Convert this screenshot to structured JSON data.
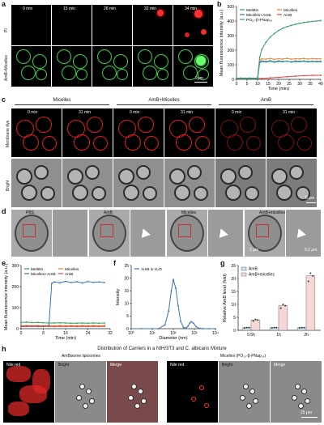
{
  "panels": {
    "a": {
      "letter": "a",
      "times": [
        "0 min",
        "15 min",
        "28 min",
        "32 min",
        "34 min"
      ],
      "row_labels": [
        "PI",
        "AmB+Micelles"
      ],
      "scale_bar": "2μm"
    },
    "b": {
      "letter": "b",
      "ylabel": "Mean fluorescence intensity (a.u.)",
      "xlabel": "Time (min)",
      "legend": [
        "Melittin",
        "Micelles",
        "Micelles+AmB",
        "AmB",
        "PO₁₀-β-PNap₁₄"
      ]
    },
    "c": {
      "letter": "c",
      "groups": [
        "Micelles",
        "AmB+Micelles",
        "AmB"
      ],
      "times": [
        "0 min",
        "31 min"
      ],
      "row_labels": [
        "Membrane dye",
        "Bright"
      ],
      "scale_bar": "5 μm"
    },
    "d": {
      "letter": "d",
      "labels": [
        "PBS",
        "AmB",
        "Micelles",
        "AmB+micelles"
      ],
      "scale_bars": [
        "1 μm",
        "0.2 μm"
      ]
    },
    "e": {
      "letter": "e",
      "ylabel": "Mean fluorescence intensity (a.u.)",
      "xlabel": "Time (min)",
      "legend": [
        "Melittin",
        "Micelles",
        "Micelles+AmB",
        "AmB"
      ]
    },
    "f": {
      "letter": "f",
      "ylabel": "Intensity",
      "xlabel": "Diameter (nm)",
      "legend": [
        "AmB in H₂O"
      ]
    },
    "g": {
      "letter": "g",
      "ylabel": "Relative AmB level (fold)",
      "legend": [
        "AmB",
        "AmB+micelles"
      ]
    },
    "h": {
      "letter": "h",
      "title": "Distribution of Carriers in a NIH/3T3 and C. albicans Mixture",
      "left_title": "AmBisome liposomes",
      "right_title": "Micelles (PO₁₀-β-PNap₁₄)",
      "col_labels": [
        "Nile red",
        "Bright",
        "Merge"
      ],
      "scale_bar": "25 μm"
    }
  },
  "chart_data": [
    {
      "id": "b",
      "type": "line",
      "xlabel": "Time (min)",
      "ylabel": "Mean fluorescence intensity (a.u.)",
      "xlim": [
        0,
        40
      ],
      "ylim": [
        0,
        500
      ],
      "xticks": [
        0,
        5,
        10,
        15,
        20,
        25,
        30,
        35,
        40
      ],
      "yticks": [
        0,
        100,
        200,
        300,
        400,
        500
      ],
      "series": [
        {
          "name": "Melittin",
          "color": "#2e9e5b",
          "x": [
            0,
            2,
            4,
            6,
            8,
            10,
            11,
            12,
            14,
            16,
            18,
            20,
            22,
            24,
            26,
            28,
            30,
            32,
            34,
            36,
            38,
            40
          ],
          "y": [
            8,
            9,
            8,
            9,
            8,
            9,
            150,
            205,
            255,
            290,
            315,
            335,
            350,
            362,
            370,
            378,
            384,
            390,
            394,
            398,
            400,
            403
          ]
        },
        {
          "name": "Micelles",
          "color": "#e3822f",
          "x": [
            0,
            4,
            8,
            10,
            11,
            12,
            14,
            16,
            18,
            20,
            22,
            24,
            26,
            28,
            30,
            32,
            34,
            36,
            38,
            40
          ],
          "y": [
            5,
            5,
            6,
            5,
            130,
            140,
            138,
            143,
            137,
            142,
            139,
            144,
            138,
            141,
            140,
            143,
            139,
            142,
            140,
            141
          ]
        },
        {
          "name": "Micelles+AmB",
          "color": "#3a6fb8",
          "x": [
            0,
            4,
            8,
            10,
            11,
            12,
            14,
            16,
            18,
            20,
            22,
            24,
            26,
            28,
            30,
            32,
            34,
            36,
            38,
            40
          ],
          "y": [
            6,
            6,
            5,
            6,
            118,
            126,
            122,
            128,
            120,
            127,
            123,
            125,
            121,
            126,
            124,
            127,
            122,
            125,
            123,
            124
          ]
        },
        {
          "name": "AmB",
          "color": "#d8473c",
          "x": [
            0,
            4,
            8,
            12,
            16,
            20,
            24,
            28,
            32,
            36,
            40
          ],
          "y": [
            6,
            6,
            7,
            6,
            10,
            14,
            18,
            22,
            25,
            27,
            28
          ]
        },
        {
          "name": "PO₁₀-β-PNap₁₄",
          "color": "#2aa198",
          "x": [
            0,
            4,
            8,
            10,
            11,
            12,
            14,
            16,
            18,
            20,
            22,
            24,
            26,
            28,
            30,
            32,
            34,
            36,
            38,
            40
          ],
          "y": [
            5,
            5,
            6,
            6,
            112,
            122,
            119,
            124,
            117,
            123,
            120,
            125,
            118,
            122,
            121,
            124,
            119,
            122,
            120,
            121
          ]
        }
      ]
    },
    {
      "id": "e",
      "type": "line",
      "xlabel": "Time (min)",
      "ylabel": "Mean fluorescence intensity (a.u.)",
      "xlim": [
        0,
        32
      ],
      "ylim": [
        0,
        300
      ],
      "xticks": [
        0,
        8,
        16,
        24,
        32
      ],
      "yticks": [
        0,
        100,
        200,
        300
      ],
      "series": [
        {
          "name": "Melittin",
          "color": "#2e9e5b",
          "x": [
            0,
            2,
            4,
            6,
            8,
            10,
            12,
            14,
            16,
            18,
            20,
            22,
            24,
            26,
            28,
            30
          ],
          "y": [
            30,
            31,
            29,
            30,
            28,
            27,
            27,
            28,
            27,
            26,
            26,
            27,
            26,
            27,
            26,
            27
          ]
        },
        {
          "name": "Micelles",
          "color": "#e3822f",
          "x": [
            0,
            2,
            4,
            6,
            8,
            10,
            12,
            14,
            16,
            18,
            20,
            22,
            24,
            26,
            28,
            30
          ],
          "y": [
            14,
            15,
            14,
            15,
            14,
            15,
            14,
            15,
            14,
            15,
            14,
            15,
            14,
            15,
            14,
            15
          ]
        },
        {
          "name": "Micelles+AmB",
          "color": "#3a6fb8",
          "x": [
            0,
            2,
            4,
            6,
            8,
            10,
            11,
            12,
            14,
            16,
            18,
            20,
            22,
            24,
            26,
            28,
            30
          ],
          "y": [
            12,
            12,
            13,
            12,
            12,
            13,
            215,
            222,
            218,
            225,
            219,
            223,
            217,
            224,
            220,
            222,
            219
          ]
        },
        {
          "name": "AmB",
          "color": "#d8473c",
          "x": [
            0,
            2,
            4,
            6,
            8,
            10,
            12,
            14,
            16,
            18,
            20,
            22,
            24,
            26,
            28,
            30
          ],
          "y": [
            10,
            10,
            11,
            10,
            10,
            11,
            10,
            11,
            10,
            11,
            10,
            11,
            10,
            11,
            10,
            11
          ]
        }
      ]
    },
    {
      "id": "f",
      "type": "line",
      "xlabel": "Diameter (nm)",
      "ylabel": "Intensity",
      "xscale": "log",
      "xlim": [
        1,
        10000
      ],
      "ylim": [
        0,
        25
      ],
      "xtick_labels": [
        "10⁰",
        "10¹",
        "10²",
        "10³",
        "10⁴"
      ],
      "yticks": [
        0,
        5,
        10,
        15,
        20,
        25
      ],
      "series": [
        {
          "name": "AmB in H₂O",
          "color": "#3a6fb8",
          "x": [
            1,
            3,
            10,
            20,
            40,
            60,
            80,
            100,
            130,
            170,
            220,
            300,
            400,
            500,
            600,
            700,
            900,
            1200,
            1600,
            2500,
            5000,
            10000
          ],
          "y": [
            0,
            0,
            0,
            0,
            1.5,
            7,
            15,
            19.5,
            16,
            9,
            3,
            0.5,
            0.3,
            1.0,
            2.2,
            2.8,
            2.2,
            0.8,
            0.2,
            0,
            0,
            0
          ]
        }
      ]
    },
    {
      "id": "g",
      "type": "bar",
      "ylabel": "Relative AmB level (fold)",
      "categories": [
        "0.5h",
        "1h",
        "2h"
      ],
      "ylim": [
        0,
        25
      ],
      "yticks": [
        0,
        5,
        10,
        15,
        20,
        25
      ],
      "series": [
        {
          "name": "AmB",
          "color": "#cfe3f1",
          "values": [
            1,
            1,
            1
          ]
        },
        {
          "name": "AmB+micelles",
          "color": "#f7d6d6",
          "values": [
            4,
            9.5,
            21
          ]
        }
      ]
    }
  ]
}
